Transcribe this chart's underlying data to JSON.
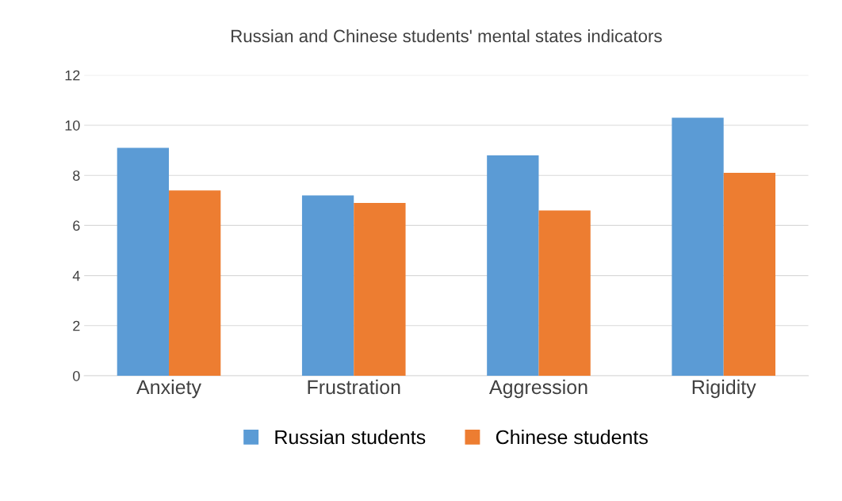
{
  "chart_data": {
    "type": "bar",
    "title": "Russian and Chinese students' mental states indicators",
    "categories": [
      "Anxiety",
      "Frustration",
      "Aggression",
      "Rigidity"
    ],
    "series": [
      {
        "name": "Russian students",
        "color": "#5b9bd5",
        "values": [
          9.1,
          7.2,
          8.8,
          10.3
        ]
      },
      {
        "name": "Chinese students",
        "color": "#ed7d31",
        "values": [
          7.4,
          6.9,
          6.6,
          8.1
        ]
      }
    ],
    "ylim": [
      0,
      12
    ],
    "yticks": [
      0,
      2,
      4,
      6,
      8,
      10,
      12
    ],
    "grid": "y",
    "legend": "bottom"
  }
}
